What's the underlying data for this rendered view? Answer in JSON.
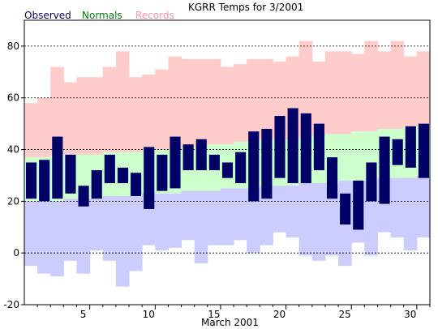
{
  "chart_data": {
    "type": "bar",
    "title": "KGRR Temps for 3/2001",
    "xlabel": "March 2001",
    "ylabel": "",
    "xlim": [
      1,
      31
    ],
    "ylim": [
      -20,
      90
    ],
    "x_ticks": [
      5,
      10,
      15,
      20,
      25,
      30
    ],
    "y_ticks": [
      -20,
      0,
      20,
      40,
      60,
      80
    ],
    "grid": "horizontal dashed at y tick labels",
    "legend": {
      "position": "top-left",
      "items": [
        {
          "name": "Observed",
          "color": "#000066"
        },
        {
          "name": "Normals",
          "color": "#008000"
        },
        {
          "name": "Records",
          "color": "#ff8fa3"
        }
      ]
    },
    "days": [
      1,
      2,
      3,
      4,
      5,
      6,
      7,
      8,
      9,
      10,
      11,
      12,
      13,
      14,
      15,
      16,
      17,
      18,
      19,
      20,
      21,
      22,
      23,
      24,
      25,
      26,
      27,
      28,
      29,
      30,
      31
    ],
    "record_high": [
      58,
      60,
      72,
      66,
      68,
      68,
      72,
      78,
      68,
      69,
      71,
      76,
      75,
      75,
      75,
      72,
      73,
      75,
      75,
      74,
      76,
      82,
      74,
      78,
      78,
      77,
      82,
      78,
      82,
      76,
      78
    ],
    "record_low": [
      -5,
      -8,
      -9,
      -3,
      -8,
      1,
      -3,
      -13,
      -7,
      3,
      1,
      2,
      5,
      -4,
      3,
      3,
      5,
      0,
      3,
      8,
      6,
      -1,
      -3,
      -1,
      -5,
      4,
      -1,
      8,
      6,
      1,
      6
    ],
    "normal_high": [
      37,
      37,
      38,
      38,
      38,
      38,
      39,
      39,
      39,
      40,
      40,
      40,
      41,
      41,
      42,
      42,
      43,
      43,
      44,
      44,
      44,
      45,
      45,
      46,
      46,
      47,
      47,
      48,
      48,
      49,
      49
    ],
    "normal_low": [
      20,
      20,
      20,
      21,
      21,
      21,
      22,
      22,
      22,
      23,
      23,
      23,
      24,
      24,
      24,
      25,
      25,
      25,
      26,
      26,
      26,
      27,
      27,
      27,
      28,
      28,
      28,
      29,
      29,
      29,
      30
    ],
    "observed_high": [
      35,
      36,
      45,
      38,
      26,
      32,
      38,
      33,
      31,
      41,
      38,
      45,
      42,
      44,
      38,
      35,
      39,
      47,
      48,
      53,
      56,
      54,
      50,
      37,
      23,
      28,
      35,
      45,
      44,
      49,
      50
    ],
    "observed_low": [
      21,
      20,
      21,
      23,
      18,
      21,
      27,
      27,
      22,
      17,
      24,
      25,
      32,
      32,
      32,
      29,
      27,
      20,
      21,
      29,
      27,
      27,
      32,
      21,
      11,
      9,
      20,
      19,
      34,
      33,
      29
    ],
    "series_colors": {
      "records": "#ffcccc",
      "normals_above": "#ccffcc",
      "normals_below": "#ccccff",
      "observed": "#000066"
    }
  }
}
